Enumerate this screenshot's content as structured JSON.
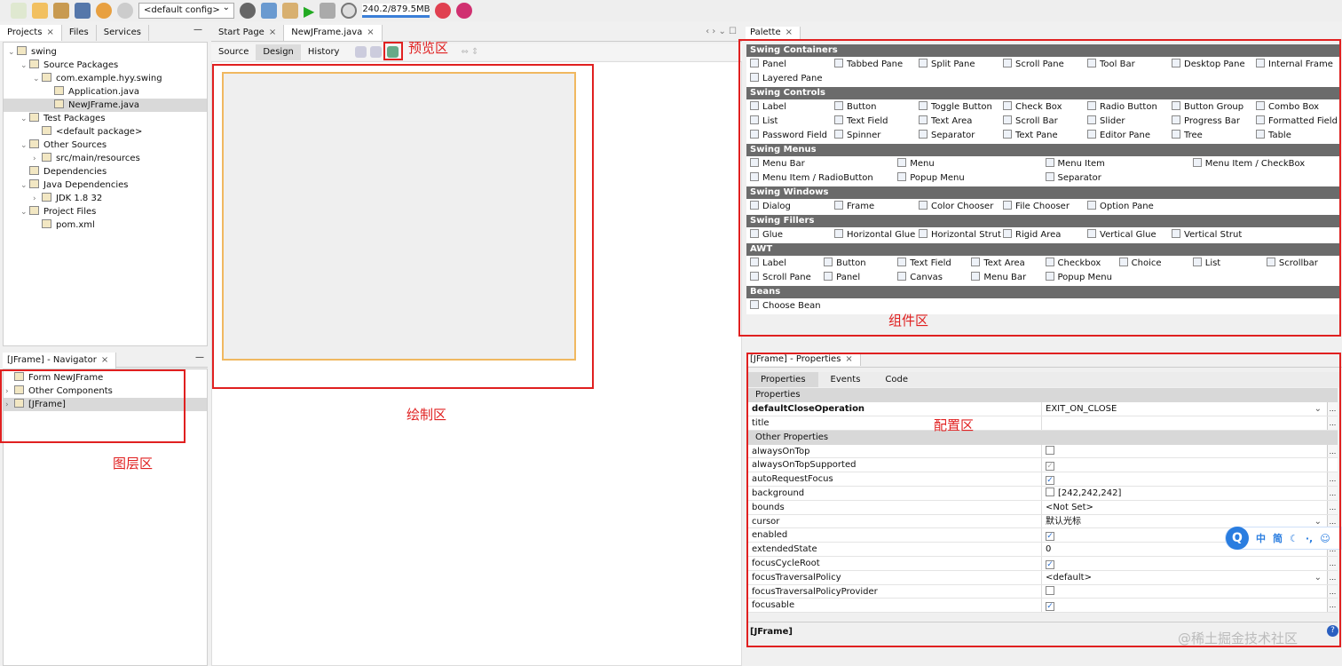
{
  "toolbar": {
    "config": "<default config>",
    "memory": "240.2/879.5MB"
  },
  "left": {
    "tabs": [
      "Projects",
      "Files",
      "Services"
    ],
    "tree": [
      {
        "label": "swing",
        "depth": 0,
        "exp": "v"
      },
      {
        "label": "Source Packages",
        "depth": 1,
        "exp": "v"
      },
      {
        "label": "com.example.hyy.swing",
        "depth": 2,
        "exp": "v"
      },
      {
        "label": "Application.java",
        "depth": 3,
        "exp": ""
      },
      {
        "label": "NewJFrame.java",
        "depth": 3,
        "exp": "",
        "sel": true
      },
      {
        "label": "Test Packages",
        "depth": 1,
        "exp": "v"
      },
      {
        "label": "<default package>",
        "depth": 2,
        "exp": ""
      },
      {
        "label": "Other Sources",
        "depth": 1,
        "exp": "v"
      },
      {
        "label": "src/main/resources",
        "depth": 2,
        "exp": ">"
      },
      {
        "label": "Dependencies",
        "depth": 1,
        "exp": ""
      },
      {
        "label": "Java Dependencies",
        "depth": 1,
        "exp": "v"
      },
      {
        "label": "JDK 1.8 32",
        "depth": 2,
        "exp": ">"
      },
      {
        "label": "Project Files",
        "depth": 1,
        "exp": "v"
      },
      {
        "label": "pom.xml",
        "depth": 2,
        "exp": ""
      }
    ]
  },
  "navigator": {
    "title": "[JFrame] - Navigator",
    "items": [
      {
        "label": "Form NewJFrame",
        "exp": ""
      },
      {
        "label": "Other Components",
        "exp": ">"
      },
      {
        "label": "[JFrame]",
        "exp": ">",
        "sel": true
      }
    ]
  },
  "editor": {
    "tabs": [
      "Start Page",
      "NewJFrame.java"
    ],
    "modes": [
      "Source",
      "Design",
      "History"
    ]
  },
  "palette": {
    "title": "Palette",
    "categories": [
      {
        "name": "Swing Containers",
        "cols": 7,
        "items": [
          "Panel",
          "Tabbed Pane",
          "Split Pane",
          "Scroll Pane",
          "Tool Bar",
          "Desktop Pane",
          "Internal Frame",
          "Layered Pane"
        ]
      },
      {
        "name": "Swing Controls",
        "cols": 7,
        "items": [
          "Label",
          "Button",
          "Toggle Button",
          "Check Box",
          "Radio Button",
          "Button Group",
          "Combo Box",
          "List",
          "Text Field",
          "Text Area",
          "Scroll Bar",
          "Slider",
          "Progress Bar",
          "Formatted Field",
          "Password Field",
          "Spinner",
          "Separator",
          "Text Pane",
          "Editor Pane",
          "Tree",
          "Table"
        ]
      },
      {
        "name": "Swing Menus",
        "cols": 4,
        "items": [
          "Menu Bar",
          "Menu",
          "Menu Item",
          "Menu Item / CheckBox",
          "Menu Item / RadioButton",
          "Popup Menu",
          "Separator"
        ]
      },
      {
        "name": "Swing Windows",
        "cols": 7,
        "items": [
          "Dialog",
          "Frame",
          "Color Chooser",
          "File Chooser",
          "Option Pane"
        ]
      },
      {
        "name": "Swing Fillers",
        "cols": 7,
        "items": [
          "Glue",
          "Horizontal Glue",
          "Horizontal Strut",
          "Rigid Area",
          "Vertical Glue",
          "Vertical Strut"
        ]
      },
      {
        "name": "AWT",
        "cols": 8,
        "items": [
          "Label",
          "Button",
          "Text Field",
          "Text Area",
          "Checkbox",
          "Choice",
          "List",
          "Scrollbar",
          "Scroll Pane",
          "Panel",
          "Canvas",
          "Menu Bar",
          "Popup Menu"
        ]
      },
      {
        "name": "Beans",
        "cols": 7,
        "items": [
          "Choose Bean"
        ]
      }
    ]
  },
  "properties": {
    "title": "[JFrame] - Properties",
    "tabs": [
      "Properties",
      "Events",
      "Code"
    ],
    "rows": [
      {
        "sec": "Properties"
      },
      {
        "name": "defaultCloseOperation",
        "value": "EXIT_ON_CLOSE",
        "bold": true,
        "dd": true
      },
      {
        "name": "title",
        "value": ""
      },
      {
        "sec": "Other Properties"
      },
      {
        "name": "alwaysOnTop",
        "cb": "off"
      },
      {
        "name": "alwaysOnTopSupported",
        "cb": "grey",
        "nobtn": true
      },
      {
        "name": "autoRequestFocus",
        "cb": "on"
      },
      {
        "name": "background",
        "value": "[242,242,242]",
        "swatch": true
      },
      {
        "name": "bounds",
        "value": "<Not Set>"
      },
      {
        "name": "cursor",
        "value": "默认光标",
        "dd": true
      },
      {
        "name": "enabled",
        "cb": "on"
      },
      {
        "name": "extendedState",
        "value": "0"
      },
      {
        "name": "focusCycleRoot",
        "cb": "on"
      },
      {
        "name": "focusTraversalPolicy",
        "value": "<default>",
        "dd": true
      },
      {
        "name": "focusTraversalPolicyProvider",
        "cb": "off"
      },
      {
        "name": "focusable",
        "cb": "on"
      }
    ],
    "footer": "[JFrame]"
  },
  "annotations": {
    "preview": "预览区",
    "draw": "绘制区",
    "layers": "图层区",
    "components": "组件区",
    "config": "配置区"
  },
  "ime": {
    "items": [
      "中",
      "简"
    ]
  },
  "watermark": "@稀土掘金技术社区",
  "colors": {
    "annotation": "#e02020",
    "palette_header": "#6b6b6b",
    "form_border": "#f0b860"
  }
}
